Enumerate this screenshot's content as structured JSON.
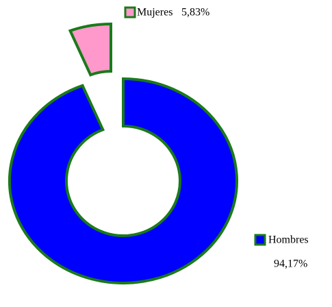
{
  "chart_data": {
    "type": "donut",
    "categories": [
      "Hombres",
      "Mujeres"
    ],
    "values": [
      94.17,
      5.83
    ],
    "value_labels": [
      "94,17%",
      "5,83%"
    ],
    "colors": [
      "#0000ff",
      "#ff99cc"
    ],
    "edge_color": "#1a7a1a"
  }
}
